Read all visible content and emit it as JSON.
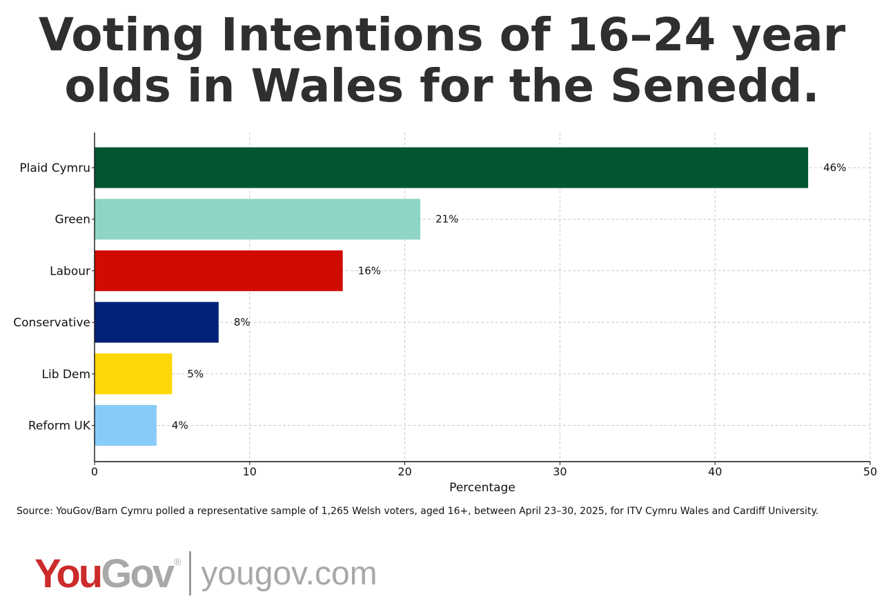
{
  "title_lines": [
    "Voting Intentions of 16–24 year",
    "olds in Wales for the Senedd."
  ],
  "source": "Source: YouGov/Barn Cymru polled a representative sample of 1,265 Welsh voters, aged 16+, between April 23–30, 2025, for ITV Cymru Wales and Cardiff University.",
  "logo": {
    "brand_part1": "You",
    "brand_part2": "Gov",
    "registered": "®",
    "url": "yougov.com"
  },
  "chart_data": {
    "type": "bar",
    "orientation": "horizontal",
    "categories": [
      "Plaid Cymru",
      "Green",
      "Labour",
      "Conservative",
      "Lib Dem",
      "Reform UK"
    ],
    "values": [
      46,
      21,
      16,
      8,
      5,
      4
    ],
    "value_labels": [
      "46%",
      "21%",
      "16%",
      "8%",
      "5%",
      "4%"
    ],
    "colors": [
      "#02562f",
      "#8ed5c6",
      "#d00c02",
      "#012279",
      "#fdd806",
      "#87ccf9"
    ],
    "xlabel": "Percentage",
    "ylabel": "",
    "xlim": [
      0,
      50
    ],
    "xticks": [
      0,
      10,
      20,
      30,
      40,
      50
    ],
    "grid": true
  }
}
